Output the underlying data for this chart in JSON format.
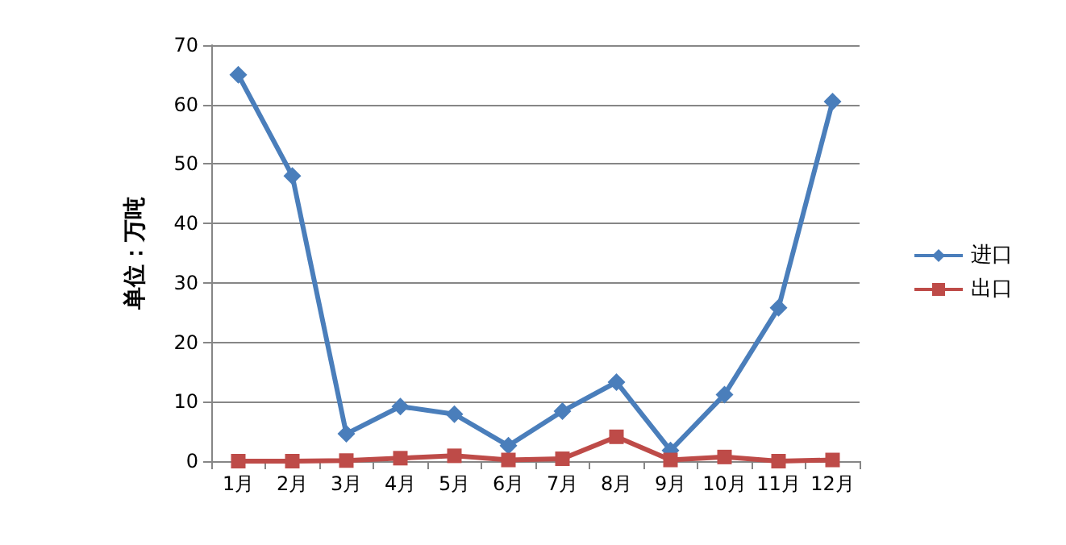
{
  "chart_data": {
    "type": "line",
    "ylabel": "单位：万吨",
    "categories": [
      "1月",
      "2月",
      "3月",
      "4月",
      "5月",
      "6月",
      "7月",
      "8月",
      "9月",
      "10月",
      "11月",
      "12月"
    ],
    "series": [
      {
        "name": "进口",
        "color": "#4a7ebb",
        "marker": "diamond",
        "values": [
          65,
          48,
          4.6,
          9.2,
          7.9,
          2.6,
          8.4,
          13.3,
          1.8,
          11.2,
          25.8,
          60.5
        ]
      },
      {
        "name": "出口",
        "color": "#be4b48",
        "marker": "square",
        "values": [
          0,
          0,
          0.1,
          0.5,
          0.9,
          0.2,
          0.4,
          4.1,
          0.2,
          0.7,
          0,
          0.2
        ]
      }
    ],
    "ylim": [
      0,
      70
    ],
    "yticks": [
      0,
      10,
      20,
      30,
      40,
      50,
      60,
      70
    ],
    "grid": "y",
    "legend": "right"
  }
}
